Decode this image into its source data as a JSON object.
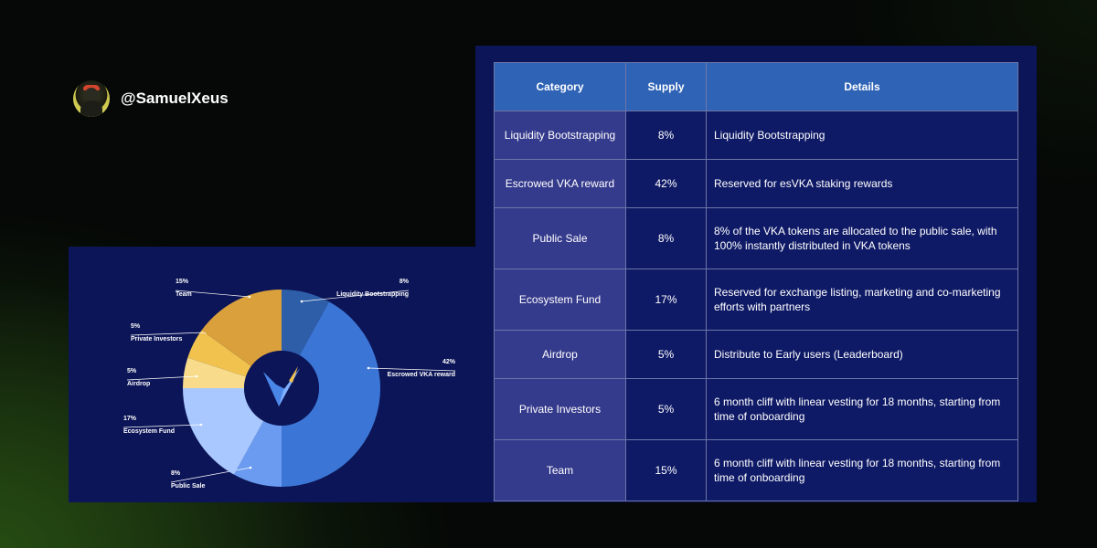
{
  "author": {
    "handle": "@SamuelXeus"
  },
  "table": {
    "headers": [
      "Category",
      "Supply",
      "Details"
    ],
    "rows": [
      {
        "category": "Liquidity Bootstrapping",
        "supply": "8%",
        "details": "Liquidity Bootstrapping"
      },
      {
        "category": "Escrowed VKA reward",
        "supply": "42%",
        "details": "Reserved for esVKA staking rewards"
      },
      {
        "category": "Public Sale",
        "supply": "8%",
        "details": "8% of the VKA tokens are allocated to the public sale, with 100% instantly distributed in VKA tokens"
      },
      {
        "category": "Ecosystem Fund",
        "supply": "17%",
        "details": "Reserved for exchange listing, marketing and co-marketing efforts with partners"
      },
      {
        "category": "Airdrop",
        "supply": "5%",
        "details": "Distribute to Early users (Leaderboard)"
      },
      {
        "category": "Private Investors",
        "supply": "5%",
        "details": "6 month cliff with linear vesting for 18 months, starting from time of onboarding"
      },
      {
        "category": "Team",
        "supply": "15%",
        "details": "6 month cliff with linear vesting for 18 months, starting from time of onboarding"
      }
    ]
  },
  "chart_data": {
    "type": "pie",
    "donut": true,
    "center_logo": "vka-logo",
    "slices": [
      {
        "name": "Liquidity Bootstrapping",
        "label": "8%",
        "value": 8,
        "color": "#2e5ea8"
      },
      {
        "name": "Escrowed VKA reward",
        "label": "42%",
        "value": 42,
        "color": "#3b76d6"
      },
      {
        "name": "Public Sale",
        "label": "8%",
        "value": 8,
        "color": "#6a9bf0"
      },
      {
        "name": "Ecosystem Fund",
        "label": "17%",
        "value": 17,
        "color": "#a9c8ff"
      },
      {
        "name": "Airdrop",
        "label": "5%",
        "value": 5,
        "color": "#f8dc8c"
      },
      {
        "name": "Private Investors",
        "label": "5%",
        "value": 5,
        "color": "#f1c24e"
      },
      {
        "name": "Team",
        "label": "15%",
        "value": 15,
        "color": "#d9a03c"
      }
    ]
  }
}
